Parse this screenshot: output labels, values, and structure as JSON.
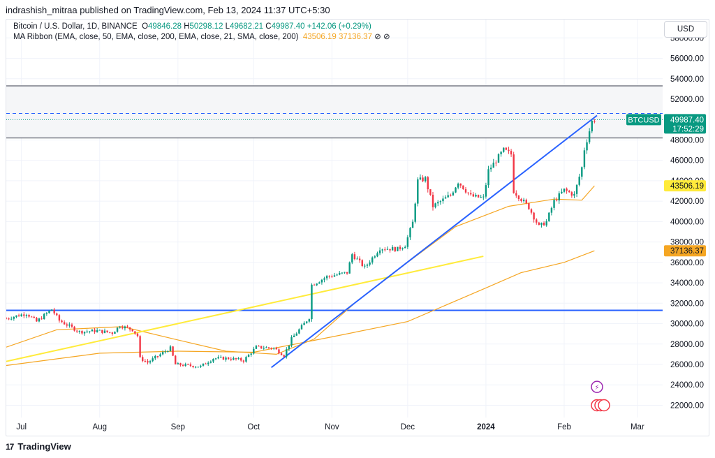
{
  "header": {
    "publish_line": "indrashish_mitraa published on TradingView.com, Feb 13, 2024 11:37 UTC+5:30"
  },
  "legend": {
    "symbol_line": "Bitcoin / U.S. Dollar, 1D, BINANCE",
    "o_label": "O",
    "o_value": "49846.28",
    "h_label": "H",
    "h_value": "50298.12",
    "l_label": "L",
    "l_value": "49682.21",
    "c_label": "C",
    "c_value": "49987.40",
    "change": "+142.06 (+0.29%)",
    "ma_line": "MA Ribbon (EMA, close, 50, EMA, close, 200, EMA, close, 21, SMA, close, 200)",
    "ma1": "43506.19",
    "ma2": "37136.37",
    "icons": "⊘ ⊘"
  },
  "currency": "USD",
  "footer": {
    "brand": "TradingView",
    "logo_glyph": "17"
  },
  "colors": {
    "up": "#089981",
    "down": "#f23645",
    "ema50": "#f5a623",
    "ema200": "#f5a623",
    "trend_yellow": "#ffeb3b",
    "trend_blue": "#2962ff",
    "zone_fill": "#f5f6f8",
    "zone_line": "#787b86"
  },
  "chart_data": {
    "type": "candlestick",
    "symbol": "BTCUSD",
    "timeframe": "1D",
    "y_axis": {
      "ticks": [
        22000,
        24000,
        26000,
        28000,
        30000,
        32000,
        34000,
        36000,
        38000,
        40000,
        42000,
        44000,
        46000,
        48000,
        50000,
        52000,
        54000,
        56000,
        58000
      ],
      "tick_labels": [
        "22000.00",
        "24000.00",
        "26000.00",
        "28000.00",
        "30000.00",
        "32000.00",
        "34000.00",
        "36000.00",
        "38000.00",
        "40000.00",
        "42000.00",
        "44000.00",
        "46000.00",
        "48000.00",
        "50000.00",
        "52000.00",
        "54000.00",
        "56000.00",
        "58000.00"
      ],
      "ylim": [
        20800,
        59800
      ]
    },
    "x_axis": {
      "range": [
        "2023-06-25",
        "2024-03-11"
      ],
      "ticks": [
        {
          "date": "2023-07-01",
          "label": "Jul",
          "bold": false
        },
        {
          "date": "2023-08-01",
          "label": "Aug",
          "bold": false
        },
        {
          "date": "2023-09-01",
          "label": "Sep",
          "bold": false
        },
        {
          "date": "2023-10-01",
          "label": "Oct",
          "bold": false
        },
        {
          "date": "2023-11-01",
          "label": "Nov",
          "bold": false
        },
        {
          "date": "2023-12-01",
          "label": "Dec",
          "bold": false
        },
        {
          "date": "2024-01-01",
          "label": "2024",
          "bold": true
        },
        {
          "date": "2024-02-01",
          "label": "Feb",
          "bold": false
        },
        {
          "date": "2024-03-01",
          "label": "Mar",
          "bold": false
        }
      ]
    },
    "close_path": [
      [
        "2023-06-25",
        30500
      ],
      [
        "2023-07-03",
        31000
      ],
      [
        "2023-07-07",
        30200
      ],
      [
        "2023-07-13",
        31400
      ],
      [
        "2023-07-16",
        30300
      ],
      [
        "2023-07-24",
        29200
      ],
      [
        "2023-07-31",
        29300
      ],
      [
        "2023-08-06",
        29100
      ],
      [
        "2023-08-09",
        29800
      ],
      [
        "2023-08-14",
        29400
      ],
      [
        "2023-08-16",
        28800
      ],
      [
        "2023-08-17",
        26600
      ],
      [
        "2023-08-20",
        26200
      ],
      [
        "2023-08-29",
        27600
      ],
      [
        "2023-08-31",
        26000
      ],
      [
        "2023-09-10",
        25800
      ],
      [
        "2023-09-15",
        26600
      ],
      [
        "2023-09-21",
        26600
      ],
      [
        "2023-09-27",
        26400
      ],
      [
        "2023-10-02",
        27700
      ],
      [
        "2023-10-09",
        27600
      ],
      [
        "2023-10-13",
        26900
      ],
      [
        "2023-10-16",
        28500
      ],
      [
        "2023-10-20",
        29700
      ],
      [
        "2023-10-23",
        30600
      ],
      [
        "2023-10-24",
        33800
      ],
      [
        "2023-10-30",
        34600
      ],
      [
        "2023-11-07",
        35000
      ],
      [
        "2023-11-09",
        36800
      ],
      [
        "2023-11-14",
        35500
      ],
      [
        "2023-11-20",
        37400
      ],
      [
        "2023-11-27",
        37300
      ],
      [
        "2023-11-30",
        37700
      ],
      [
        "2023-12-03",
        39900
      ],
      [
        "2023-12-05",
        44000
      ],
      [
        "2023-12-08",
        44200
      ],
      [
        "2023-12-11",
        41500
      ],
      [
        "2023-12-18",
        42600
      ],
      [
        "2023-12-21",
        43900
      ],
      [
        "2023-12-26",
        42500
      ],
      [
        "2023-12-31",
        42300
      ],
      [
        "2024-01-02",
        45000
      ],
      [
        "2024-01-08",
        47000
      ],
      [
        "2024-01-11",
        46600
      ],
      [
        "2024-01-12",
        43000
      ],
      [
        "2024-01-18",
        41400
      ],
      [
        "2024-01-22",
        39500
      ],
      [
        "2024-01-25",
        40000
      ],
      [
        "2024-01-28",
        42000
      ],
      [
        "2024-02-01",
        43100
      ],
      [
        "2024-02-05",
        42600
      ],
      [
        "2024-02-08",
        45300
      ],
      [
        "2024-02-09",
        47100
      ],
      [
        "2024-02-12",
        49800
      ],
      [
        "2024-02-13",
        49987.4
      ]
    ],
    "series": [
      {
        "name": "MA Ribbon EMA 50",
        "value": 43506.19,
        "points": [
          [
            "2023-06-25",
            27700
          ],
          [
            "2023-07-15",
            29400
          ],
          [
            "2023-08-10",
            29700
          ],
          [
            "2023-09-01",
            28400
          ],
          [
            "2023-09-20",
            27300
          ],
          [
            "2023-10-10",
            27000
          ],
          [
            "2023-10-25",
            28500
          ],
          [
            "2023-11-10",
            32000
          ],
          [
            "2023-12-01",
            36000
          ],
          [
            "2023-12-20",
            39500
          ],
          [
            "2024-01-10",
            41500
          ],
          [
            "2024-01-28",
            42200
          ],
          [
            "2024-02-08",
            42100
          ],
          [
            "2024-02-13",
            43506.19
          ]
        ]
      },
      {
        "name": "MA Ribbon EMA 200",
        "value": 37136.37,
        "points": [
          [
            "2023-06-25",
            25900
          ],
          [
            "2023-08-01",
            27100
          ],
          [
            "2023-09-01",
            27300
          ],
          [
            "2023-10-01",
            27200
          ],
          [
            "2023-11-01",
            28700
          ],
          [
            "2023-12-01",
            30200
          ],
          [
            "2024-01-01",
            33500
          ],
          [
            "2024-01-15",
            35000
          ],
          [
            "2024-02-01",
            36000
          ],
          [
            "2024-02-13",
            37136.37
          ]
        ]
      }
    ],
    "horizontal_lines": [
      {
        "price": 31300,
        "color": "#2962ff"
      },
      {
        "price": 50600,
        "color": "#2962ff",
        "style": "dashed"
      },
      {
        "price": 49987.4,
        "color": "#089981",
        "style": "dotted"
      }
    ],
    "zone": {
      "top": 53300,
      "bottom": 48200
    },
    "trend_lines": [
      {
        "color": "#ffeb3b",
        "from": [
          "2023-06-25",
          26300
        ],
        "to": [
          "2023-12-31",
          36600
        ]
      },
      {
        "color": "#2962ff",
        "from": [
          "2023-10-08",
          25700
        ],
        "to": [
          "2024-02-14",
          50400
        ]
      }
    ],
    "price_labels": [
      {
        "text": "49987.40",
        "sub": "17:52:29",
        "tag": "BTCUSD",
        "price": 49987.4,
        "color": "#089981"
      },
      {
        "text": "43506.19",
        "price": 43506.19,
        "color": "#ffeb3b"
      },
      {
        "text": "37136.37",
        "price": 37136.37,
        "color": "#f5a623"
      }
    ]
  }
}
